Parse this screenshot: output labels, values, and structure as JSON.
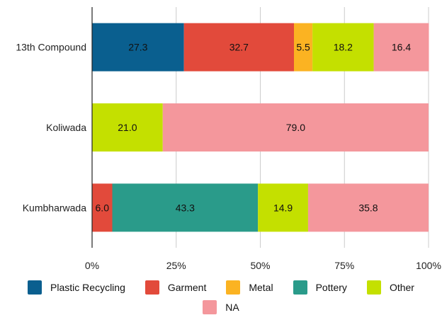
{
  "chart_data": {
    "type": "bar",
    "orientation": "horizontal",
    "stacked": "percent",
    "categories": [
      "13th Compound",
      "Koliwada",
      "Kumbharwada"
    ],
    "series": [
      {
        "name": "Plastic Recycling",
        "color": "#0a5f8f",
        "values": [
          27.3,
          0,
          0
        ]
      },
      {
        "name": "Garment",
        "color": "#e24a3b",
        "values": [
          32.7,
          0,
          6.0
        ]
      },
      {
        "name": "Metal",
        "color": "#fbb322",
        "values": [
          5.5,
          0,
          0
        ]
      },
      {
        "name": "Pottery",
        "color": "#2a9b8a",
        "values": [
          0,
          0,
          43.3
        ]
      },
      {
        "name": "Other",
        "color": "#c4e000",
        "values": [
          18.2,
          21.0,
          14.9
        ]
      },
      {
        "name": "NA",
        "color": "#f4979c",
        "values": [
          16.4,
          79.0,
          35.8
        ]
      }
    ],
    "xlim": [
      0,
      100
    ],
    "x_ticks": [
      "0%",
      "25%",
      "50%",
      "75%",
      "100%"
    ],
    "grid": "vertical",
    "legend_position": "bottom",
    "title": "",
    "xlabel": "",
    "ylabel": ""
  }
}
